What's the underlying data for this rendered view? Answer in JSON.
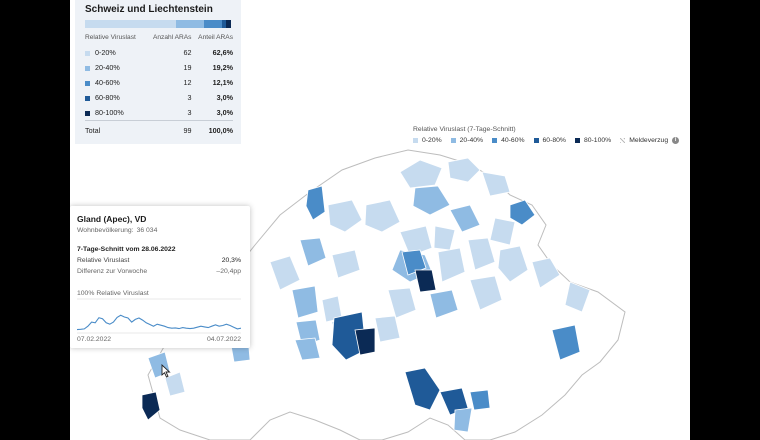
{
  "summary": {
    "title": "Schweiz und Liechtenstein",
    "headers": [
      "Relative Viruslast",
      "Anzahl ARAs",
      "Anteil ARAs"
    ],
    "rows": [
      {
        "category": "0-20%",
        "count": "62",
        "share": "62,6%",
        "share_value": 62.6,
        "color": "#c6dbef"
      },
      {
        "category": "20-40%",
        "count": "19",
        "share": "19,2%",
        "share_value": 19.2,
        "color": "#8fbbe3"
      },
      {
        "category": "40-60%",
        "count": "12",
        "share": "12,1%",
        "share_value": 12.1,
        "color": "#4a8cc8"
      },
      {
        "category": "60-80%",
        "count": "3",
        "share": "3,0%",
        "share_value": 3.0,
        "color": "#1f5a98"
      },
      {
        "category": "80-100%",
        "count": "3",
        "share": "3,0%",
        "share_value": 3.0,
        "color": "#0b2a55"
      }
    ],
    "total": {
      "label": "Total",
      "count": "99",
      "share": "100,0%"
    }
  },
  "legend": {
    "title": "Relative Viruslast (7-Tage-Schnitt)",
    "items": [
      {
        "label": "0-20%",
        "color": "#c6dbef"
      },
      {
        "label": "20-40%",
        "color": "#8fbbe3"
      },
      {
        "label": "40-60%",
        "color": "#4a8cc8"
      },
      {
        "label": "60-80%",
        "color": "#1f5a98"
      },
      {
        "label": "80-100%",
        "color": "#0b2a55"
      }
    ],
    "missing_label": "Meldeverzug",
    "info_icon": "info-icon",
    "info_glyph": "i"
  },
  "tooltip": {
    "title": "Gland (Apec), VD",
    "population_label": "Wohnbevölkerung:",
    "population_value": "36 034",
    "average_heading": "7-Tage-Schnitt vom 28.06.2022",
    "relative_label": "Relative Viruslast",
    "relative_value": "20,3%",
    "diff_label": "Differenz zur Vorwoche",
    "diff_value": "–20,4pp",
    "sparkline_max_label": "100%",
    "sparkline_series_label": "Relative Viruslast",
    "start_date": "07.02.2022",
    "end_date": "04.07.2022",
    "sparkline_values": [
      10,
      11,
      12,
      20,
      32,
      30,
      45,
      42,
      30,
      26,
      32,
      46,
      52,
      47,
      44,
      32,
      40,
      44,
      38,
      30,
      25,
      20,
      26,
      23,
      20,
      16,
      14,
      15,
      13,
      16,
      14,
      13,
      14,
      17,
      20,
      18,
      16,
      20,
      24,
      20,
      22,
      26,
      22,
      17,
      12,
      14
    ]
  }
}
